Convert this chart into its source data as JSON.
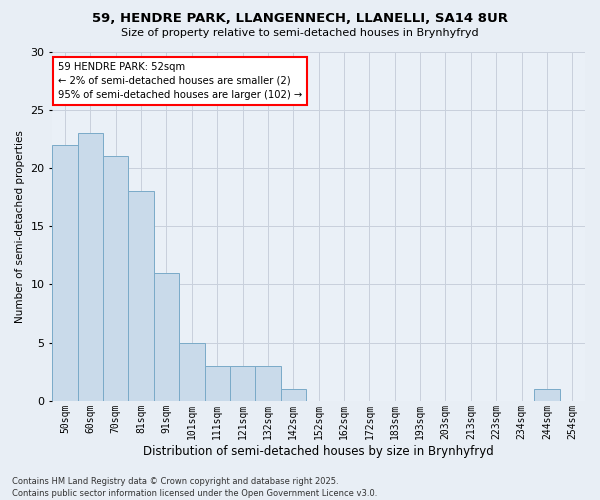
{
  "title_line1": "59, HENDRE PARK, LLANGENNECH, LLANELLI, SA14 8UR",
  "title_line2": "Size of property relative to semi-detached houses in Brynhyfryd",
  "xlabel": "Distribution of semi-detached houses by size in Brynhyfryd",
  "ylabel": "Number of semi-detached properties",
  "categories": [
    "50sqm",
    "60sqm",
    "70sqm",
    "81sqm",
    "91sqm",
    "101sqm",
    "111sqm",
    "121sqm",
    "132sqm",
    "142sqm",
    "152sqm",
    "162sqm",
    "172sqm",
    "183sqm",
    "193sqm",
    "203sqm",
    "213sqm",
    "223sqm",
    "234sqm",
    "244sqm",
    "254sqm"
  ],
  "values": [
    22,
    23,
    21,
    18,
    11,
    5,
    3,
    3,
    3,
    1,
    0,
    0,
    0,
    0,
    0,
    0,
    0,
    0,
    0,
    1,
    0
  ],
  "bar_color": "#c9daea",
  "bar_edge_color": "#7aaac8",
  "annotation_title": "59 HENDRE PARK: 52sqm",
  "annotation_line2": "← 2% of semi-detached houses are smaller (2)",
  "annotation_line3": "95% of semi-detached houses are larger (102) →",
  "ylim": [
    0,
    30
  ],
  "yticks": [
    0,
    5,
    10,
    15,
    20,
    25,
    30
  ],
  "footer_line1": "Contains HM Land Registry data © Crown copyright and database right 2025.",
  "footer_line2": "Contains public sector information licensed under the Open Government Licence v3.0.",
  "bg_color": "#e8eef5",
  "plot_bg_color": "#eaf0f7",
  "grid_color": "#c8d0dc"
}
